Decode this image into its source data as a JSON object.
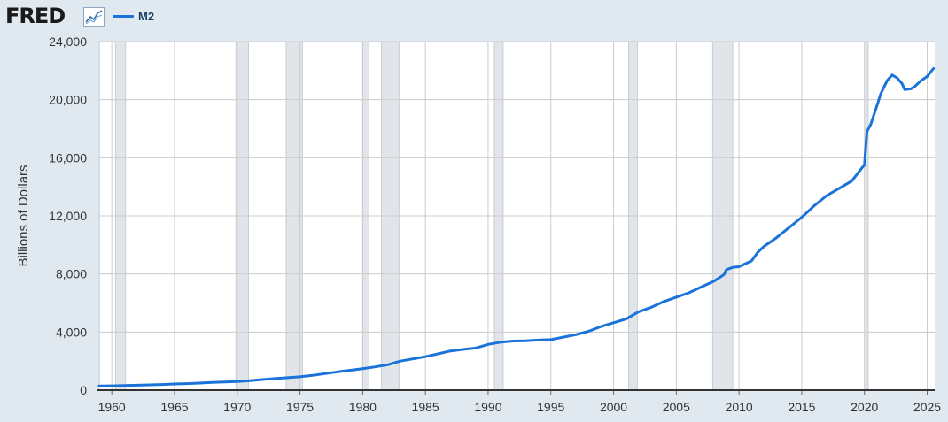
{
  "header": {
    "logo": "FRED",
    "logo_icon": "trend-chart-icon"
  },
  "colors": {
    "background": "#e1e9f0",
    "plot_background": "#ffffff",
    "series": "#1a73d9",
    "recession": "#e1e5ea",
    "grid": "#cccccc",
    "axis_text": "#333333"
  },
  "chart_data": {
    "type": "line",
    "title": "",
    "xlabel": "",
    "ylabel": "Billions of Dollars",
    "xlim": [
      1959.0,
      2025.6
    ],
    "ylim": [
      0,
      24000
    ],
    "grid": true,
    "legend_position": "top-left",
    "x_ticks": [
      "1960",
      "1965",
      "1970",
      "1975",
      "1980",
      "1985",
      "1990",
      "1995",
      "2000",
      "2005",
      "2010",
      "2015",
      "2020",
      "2025"
    ],
    "y_ticks": [
      "0",
      "4,000",
      "8,000",
      "12,000",
      "16,000",
      "20,000",
      "24,000"
    ],
    "y_tick_values": [
      0,
      4000,
      8000,
      12000,
      16000,
      20000,
      24000
    ],
    "x_tick_values": [
      1960,
      1965,
      1970,
      1975,
      1980,
      1985,
      1990,
      1995,
      2000,
      2005,
      2010,
      2015,
      2020,
      2025
    ],
    "recessions": [
      [
        1960.3,
        1961.1
      ],
      [
        1969.9,
        1970.9
      ],
      [
        1973.9,
        1975.2
      ],
      [
        1980.0,
        1980.5
      ],
      [
        1981.5,
        1982.9
      ],
      [
        1990.5,
        1991.2
      ],
      [
        2001.2,
        2001.9
      ],
      [
        2007.9,
        2009.5
      ],
      [
        2020.1,
        2020.3
      ]
    ],
    "series": [
      {
        "name": "M2",
        "points": [
          [
            1959.0,
            290
          ],
          [
            1960.0,
            300
          ],
          [
            1961.0,
            315
          ],
          [
            1962.0,
            340
          ],
          [
            1963.0,
            365
          ],
          [
            1964.0,
            390
          ],
          [
            1965.0,
            425
          ],
          [
            1966.0,
            450
          ],
          [
            1967.0,
            490
          ],
          [
            1968.0,
            530
          ],
          [
            1969.0,
            560
          ],
          [
            1970.0,
            590
          ],
          [
            1971.0,
            650
          ],
          [
            1972.0,
            730
          ],
          [
            1973.0,
            800
          ],
          [
            1974.0,
            860
          ],
          [
            1975.0,
            920
          ],
          [
            1976.0,
            1020
          ],
          [
            1977.0,
            1140
          ],
          [
            1978.0,
            1260
          ],
          [
            1979.0,
            1370
          ],
          [
            1980.0,
            1480
          ],
          [
            1981.0,
            1600
          ],
          [
            1982.0,
            1750
          ],
          [
            1983.0,
            2000
          ],
          [
            1984.0,
            2150
          ],
          [
            1985.0,
            2300
          ],
          [
            1986.0,
            2500
          ],
          [
            1987.0,
            2700
          ],
          [
            1988.0,
            2800
          ],
          [
            1989.0,
            2900
          ],
          [
            1990.0,
            3150
          ],
          [
            1991.0,
            3300
          ],
          [
            1992.0,
            3380
          ],
          [
            1993.0,
            3400
          ],
          [
            1994.0,
            3450
          ],
          [
            1995.0,
            3480
          ],
          [
            1996.0,
            3650
          ],
          [
            1997.0,
            3820
          ],
          [
            1998.0,
            4050
          ],
          [
            1999.0,
            4380
          ],
          [
            2000.0,
            4640
          ],
          [
            2001.0,
            4900
          ],
          [
            2002.0,
            5400
          ],
          [
            2003.0,
            5700
          ],
          [
            2004.0,
            6100
          ],
          [
            2005.0,
            6400
          ],
          [
            2006.0,
            6700
          ],
          [
            2007.0,
            7100
          ],
          [
            2008.0,
            7500
          ],
          [
            2008.8,
            7950
          ],
          [
            2009.0,
            8300
          ],
          [
            2009.5,
            8450
          ],
          [
            2010.0,
            8500
          ],
          [
            2011.0,
            8900
          ],
          [
            2011.5,
            9500
          ],
          [
            2012.0,
            9900
          ],
          [
            2013.0,
            10500
          ],
          [
            2014.0,
            11200
          ],
          [
            2015.0,
            11900
          ],
          [
            2016.0,
            12700
          ],
          [
            2017.0,
            13400
          ],
          [
            2018.0,
            13900
          ],
          [
            2019.0,
            14400
          ],
          [
            2019.8,
            15300
          ],
          [
            2020.0,
            15500
          ],
          [
            2020.2,
            17800
          ],
          [
            2020.5,
            18300
          ],
          [
            2021.0,
            19600
          ],
          [
            2021.3,
            20400
          ],
          [
            2021.8,
            21300
          ],
          [
            2022.2,
            21700
          ],
          [
            2022.6,
            21500
          ],
          [
            2023.0,
            21100
          ],
          [
            2023.2,
            20700
          ],
          [
            2023.7,
            20750
          ],
          [
            2024.0,
            20900
          ],
          [
            2024.5,
            21300
          ],
          [
            2025.0,
            21600
          ],
          [
            2025.5,
            22150
          ]
        ]
      }
    ]
  }
}
